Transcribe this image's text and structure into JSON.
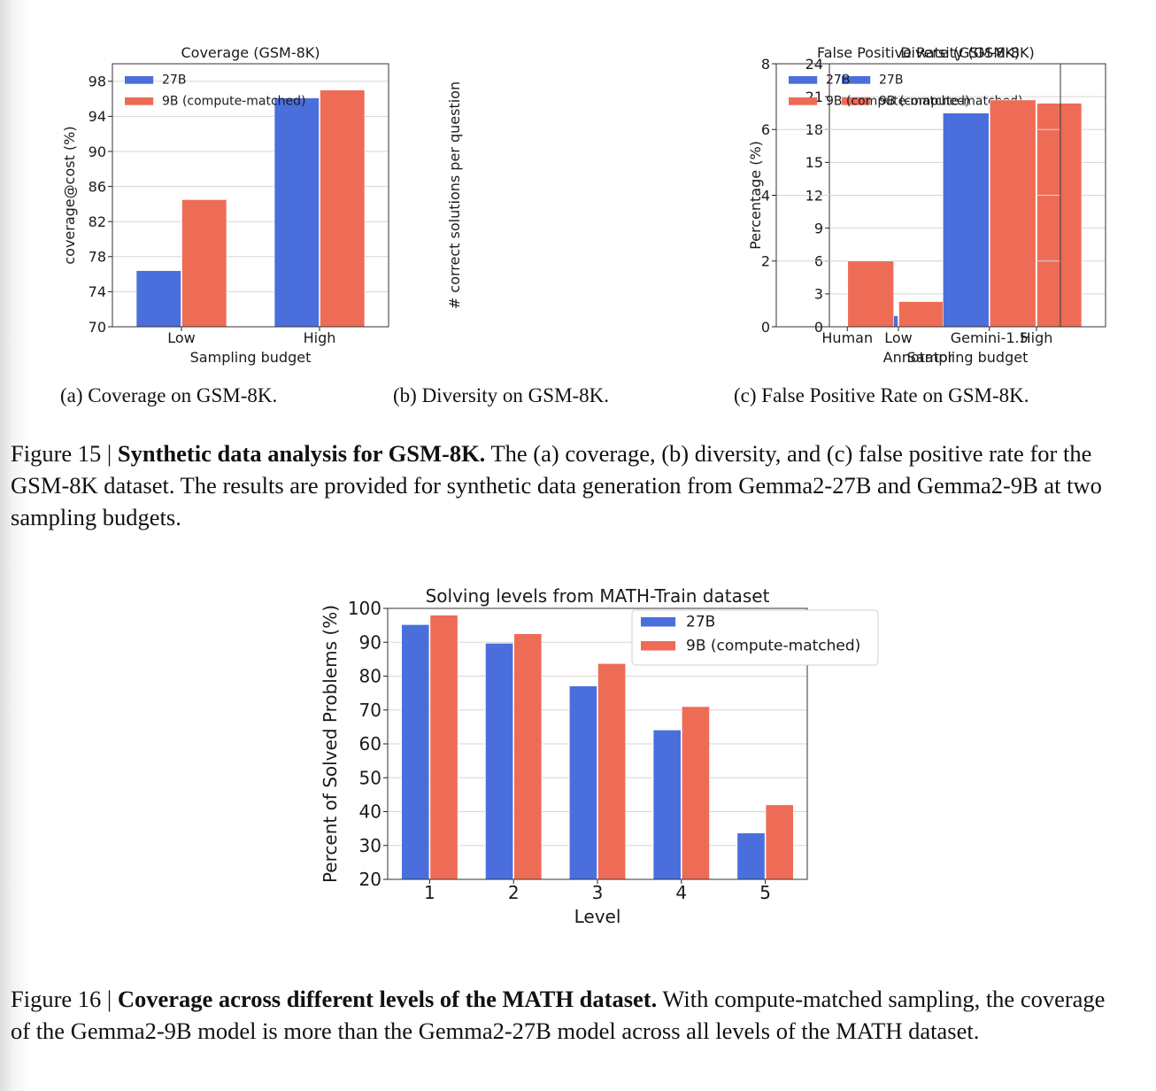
{
  "figure15": {
    "subcaptions": [
      "(a) Coverage on GSM-8K.",
      "(b) Diversity on GSM-8K.",
      "(c) False Positive Rate on GSM-8K."
    ],
    "caption_label": "Figure 15 |",
    "caption_title": "Synthetic data analysis for GSM-8K.",
    "caption_text": "The (a) coverage, (b) diversity, and (c) false positive rate for the GSM-8K dataset. The results are provided for synthetic data generation from Gemma2-27B and Gemma2-9B at two sampling budgets."
  },
  "figure16": {
    "caption_label": "Figure 16 |",
    "caption_title": "Coverage across different levels of the MATH dataset.",
    "caption_text": "With compute-matched sampling, the coverage of the Gemma2-9B model is more than the Gemma2-27B model across all levels of the MATH dataset."
  },
  "colors": {
    "27B": "#4a6fdc",
    "9B": "#ee6c56"
  },
  "chart_data": [
    {
      "type": "bar",
      "title": "Coverage (GSM-8K)",
      "xlabel": "Sampling budget",
      "ylabel": "coverage@cost (%)",
      "categories": [
        "Low",
        "High"
      ],
      "ylim": [
        70,
        100
      ],
      "yticks": [
        70,
        74,
        78,
        82,
        86,
        90,
        94,
        98
      ],
      "series": [
        {
          "name": "27B",
          "values": [
            76.4,
            96.1
          ]
        },
        {
          "name": "9B (compute-matched)",
          "values": [
            84.5,
            97.0
          ]
        }
      ],
      "legend": "top-left",
      "grid": true
    },
    {
      "type": "bar",
      "title": "Diversity (GSM-8K)",
      "xlabel": "Sampling budget",
      "ylabel": "# correct solutions per question",
      "categories": [
        "Low",
        "High"
      ],
      "ylim": [
        0,
        24
      ],
      "yticks": [
        0,
        3,
        6,
        9,
        12,
        15,
        18,
        21,
        24
      ],
      "series": [
        {
          "name": "27B",
          "values": [
            1.0,
            7.9
          ]
        },
        {
          "name": "9B (compute-matched)",
          "values": [
            2.3,
            20.4
          ]
        }
      ],
      "legend": "top-left",
      "grid": true
    },
    {
      "type": "bar",
      "title": "False Positive Rate (GSM-8K)",
      "xlabel": "Annotator",
      "ylabel": "Percentage (%)",
      "categories": [
        "Human",
        "Gemini-1.5"
      ],
      "ylim": [
        0,
        8
      ],
      "yticks": [
        0,
        2,
        4,
        6,
        8
      ],
      "series": [
        {
          "name": "27B",
          "values": [
            0,
            6.5
          ]
        },
        {
          "name": "9B (compute-matched)",
          "values": [
            2.0,
            6.9
          ]
        }
      ],
      "legend": "top-left",
      "grid": true
    },
    {
      "type": "bar",
      "title": "Solving levels from MATH-Train dataset",
      "xlabel": "Level",
      "ylabel": "Percent of Solved Problems (%)",
      "categories": [
        "1",
        "2",
        "3",
        "4",
        "5"
      ],
      "ylim": [
        20,
        100
      ],
      "yticks": [
        20,
        30,
        40,
        50,
        60,
        70,
        80,
        90,
        100
      ],
      "series": [
        {
          "name": "27B",
          "values": [
            95.2,
            89.7,
            77.1,
            64.1,
            33.7
          ]
        },
        {
          "name": "9B (compute-matched)",
          "values": [
            98.0,
            92.5,
            83.7,
            71.0,
            42.0
          ]
        }
      ],
      "legend": "top-right",
      "grid": true
    }
  ]
}
